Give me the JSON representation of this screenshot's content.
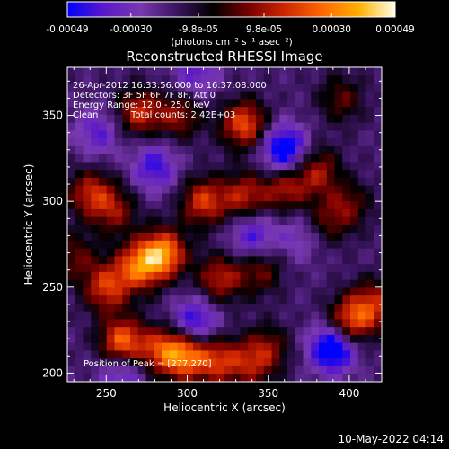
{
  "chart_data": {
    "type": "heatmap",
    "title": "Reconstructed RHESSI Image",
    "xlabel": "Heliocentric X (arcsec)",
    "ylabel": "Heliocentric Y (arcsec)",
    "xlim": [
      226,
      420
    ],
    "ylim": [
      195,
      378
    ],
    "x_ticks": [
      250,
      300,
      350,
      400
    ],
    "y_ticks": [
      200,
      250,
      300,
      350
    ],
    "colorbar": {
      "range": [
        -0.00049,
        0.00049
      ],
      "tick_values": [
        -0.00049,
        -0.0003,
        -9.8e-05,
        9.8e-05,
        0.0003,
        0.00049
      ],
      "tick_labels": [
        "-0.00049",
        "-0.00030",
        "-9.8e-05",
        "9.8e-05",
        "0.00030",
        "0.00049"
      ],
      "units": "(photons cm⁻² s⁻¹ asec⁻²)",
      "colors": [
        "#0000ff",
        "#5a18c8",
        "#7838b0",
        "#3a1460",
        "#000000",
        "#7a0000",
        "#d02800",
        "#ff6800",
        "#ffb000",
        "#ffffe8"
      ]
    },
    "annotations": {
      "time_range": "26-Apr-2012 16:33:56.000 to 16:37:08.000",
      "detectors": "Detectors: 3F 5F 6F 7F 8F, Att 0",
      "energy": "Energy Range: 12.0 - 25.0 keV",
      "method": "Clean",
      "total_counts": "Total counts: 2.42E+03",
      "peak": "Position of Peak = [277,270]"
    },
    "peak_position": [
      277,
      270
    ],
    "grid": false,
    "sources": [
      {
        "x": 250,
        "y": 250,
        "value": 0.00035
      },
      {
        "x": 270,
        "y": 262,
        "value": 0.0004
      },
      {
        "x": 285,
        "y": 270,
        "value": 0.00049
      },
      {
        "x": 260,
        "y": 218,
        "value": 0.00045
      },
      {
        "x": 285,
        "y": 213,
        "value": 0.00035
      },
      {
        "x": 300,
        "y": 210,
        "value": 0.0004
      },
      {
        "x": 320,
        "y": 207,
        "value": 0.0003
      },
      {
        "x": 340,
        "y": 205,
        "value": 0.00022
      },
      {
        "x": 350,
        "y": 215,
        "value": 0.0002
      },
      {
        "x": 310,
        "y": 300,
        "value": 0.00035
      },
      {
        "x": 335,
        "y": 303,
        "value": 0.0003
      },
      {
        "x": 360,
        "y": 308,
        "value": 0.00028
      },
      {
        "x": 380,
        "y": 318,
        "value": 0.00028
      },
      {
        "x": 400,
        "y": 298,
        "value": 0.0002
      },
      {
        "x": 385,
        "y": 288,
        "value": 0.00018
      },
      {
        "x": 320,
        "y": 255,
        "value": 0.0003
      },
      {
        "x": 345,
        "y": 260,
        "value": 0.00022
      },
      {
        "x": 270,
        "y": 352,
        "value": 0.00032
      },
      {
        "x": 295,
        "y": 350,
        "value": 0.00025
      },
      {
        "x": 335,
        "y": 345,
        "value": 0.0004
      },
      {
        "x": 240,
        "y": 305,
        "value": 0.0003
      },
      {
        "x": 255,
        "y": 295,
        "value": 0.00024
      },
      {
        "x": 400,
        "y": 230,
        "value": 0.00038
      },
      {
        "x": 415,
        "y": 240,
        "value": 0.0003
      },
      {
        "x": 230,
        "y": 268,
        "value": 0.0002
      },
      {
        "x": 395,
        "y": 360,
        "value": 0.0002
      },
      {
        "x": 370,
        "y": 280,
        "value": -0.00015
      },
      {
        "x": 305,
        "y": 230,
        "value": -0.0003
      },
      {
        "x": 360,
        "y": 330,
        "value": -0.0004
      },
      {
        "x": 390,
        "y": 215,
        "value": -0.00045
      },
      {
        "x": 280,
        "y": 320,
        "value": -0.00025
      },
      {
        "x": 340,
        "y": 280,
        "value": -0.00025
      },
      {
        "x": 245,
        "y": 340,
        "value": -0.0002
      },
      {
        "x": 305,
        "y": 375,
        "value": -0.0002
      },
      {
        "x": 260,
        "y": 200,
        "value": -0.00022
      }
    ]
  },
  "footer": {
    "timestamp": "10-May-2022 04:14"
  }
}
